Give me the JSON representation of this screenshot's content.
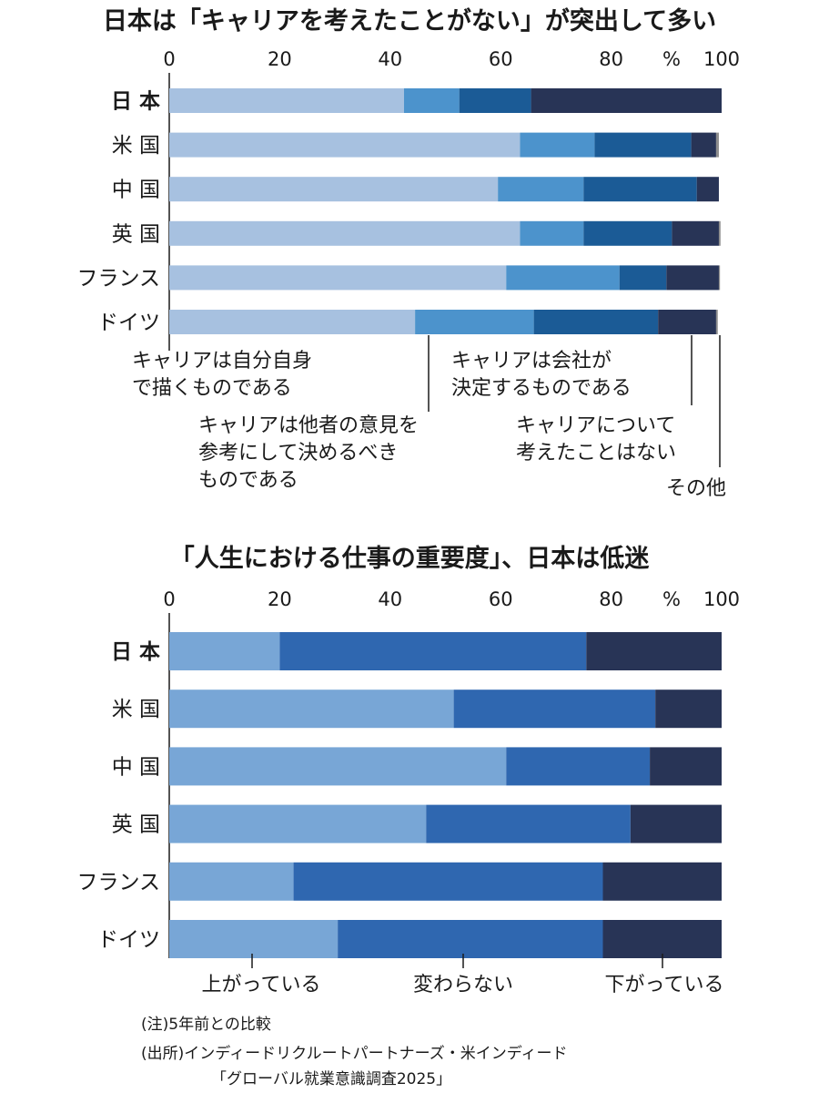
{
  "chart_data": [
    {
      "type": "bar",
      "orientation": "horizontal",
      "stacked": true,
      "title": "日本は「キャリアを考えたことがない」が突出して多い",
      "unit": "%",
      "xlim": [
        0,
        100
      ],
      "xticks": [
        0,
        20,
        40,
        60,
        80,
        100
      ],
      "categories": [
        "日 本",
        "米 国",
        "中 国",
        "英 国",
        "フランス",
        "ドイツ"
      ],
      "series": [
        {
          "name": "キャリアは自分自身で描くものである",
          "color": "#a7c1e0",
          "values": [
            42.5,
            63.5,
            59.5,
            63.5,
            61.0,
            44.5
          ]
        },
        {
          "name": "キャリアは他者の意見を参考にして決めるべきものである",
          "color": "#4c93cc",
          "values": [
            10.0,
            13.5,
            15.5,
            11.5,
            20.5,
            21.5
          ]
        },
        {
          "name": "キャリアは会社が決定するものである",
          "color": "#1b5b96",
          "values": [
            13.0,
            17.5,
            20.5,
            16.0,
            8.5,
            22.5
          ]
        },
        {
          "name": "キャリアについて考えたことはない",
          "color": "#283456",
          "values": [
            34.5,
            4.5,
            4.0,
            8.5,
            9.5,
            10.5
          ]
        },
        {
          "name": "その他",
          "color": "#8e8e8e",
          "values": [
            0.0,
            0.5,
            0.0,
            0.3,
            0.2,
            0.3
          ]
        }
      ]
    },
    {
      "type": "bar",
      "orientation": "horizontal",
      "stacked": true,
      "title": "「人生における仕事の重要度」、日本は低迷",
      "unit": "%",
      "xlim": [
        0,
        100
      ],
      "xticks": [
        0,
        20,
        40,
        60,
        80,
        100
      ],
      "categories": [
        "日 本",
        "米 国",
        "中 国",
        "英 国",
        "フランス",
        "ドイツ"
      ],
      "series": [
        {
          "name": "上がっている",
          "color": "#78a6d6",
          "values": [
            20.0,
            51.5,
            61.0,
            46.5,
            22.5,
            30.5
          ]
        },
        {
          "name": "変わらない",
          "color": "#2f67b0",
          "values": [
            55.5,
            36.5,
            26.0,
            37.0,
            56.0,
            48.0
          ]
        },
        {
          "name": "下がっている",
          "color": "#283456",
          "values": [
            24.5,
            12.0,
            13.0,
            16.5,
            21.5,
            21.5
          ]
        }
      ]
    }
  ],
  "notes": {
    "note": "(注)5年前との比較",
    "source_line1": "(出所)インディードリクルートパートナーズ・米インディード",
    "source_line2": "「グローバル就業意識調査2025」"
  }
}
